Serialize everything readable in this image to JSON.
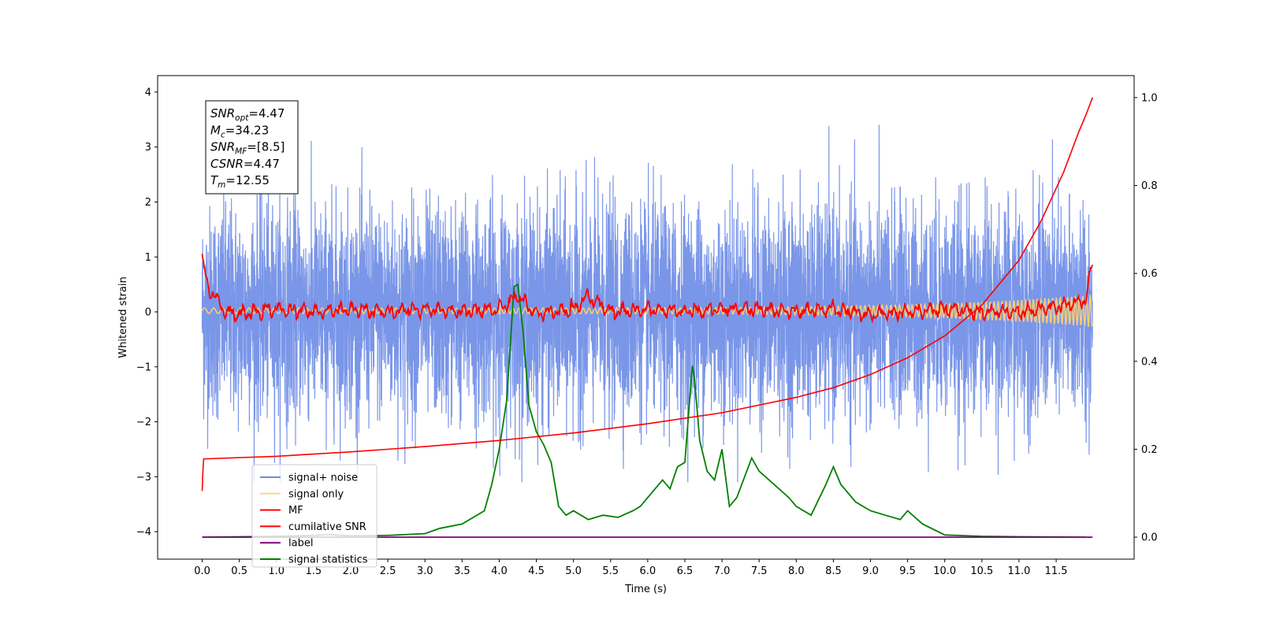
{
  "chart_data": {
    "type": "line",
    "xlabel": "Time (s)",
    "ylabel": "Whitened strain",
    "xlim": [
      -0.6,
      12.55
    ],
    "ylim_left": [
      -4.5,
      4.3
    ],
    "ylim_right": [
      -0.05,
      1.05
    ],
    "x_ticks": [
      "0.0",
      "0.5",
      "1.0",
      "1.5",
      "2.0",
      "2.5",
      "3.0",
      "3.5",
      "4.0",
      "4.5",
      "5.0",
      "5.5",
      "6.0",
      "6.5",
      "7.0",
      "7.5",
      "8.0",
      "8.5",
      "9.0",
      "9.5",
      "10.0",
      "10.5",
      "11.0",
      "11.5"
    ],
    "y_ticks_left": [
      "4",
      "3",
      "2",
      "1",
      "0",
      "−1",
      "−2",
      "−3",
      "−4"
    ],
    "y_ticks_right": [
      "1.0",
      "0.8",
      "0.6",
      "0.4",
      "0.2",
      "0.0"
    ],
    "legend_position": "lower left",
    "annotation": {
      "lines": [
        {
          "base": "SNR",
          "sub": "opt",
          "value": "=4.47"
        },
        {
          "base": "M",
          "sub": "c",
          "value": "=34.23"
        },
        {
          "base": "SNR",
          "sub": "MF",
          "value": "=[8.5]"
        },
        {
          "base": "CSNR",
          "sub": "",
          "value": "=4.47"
        },
        {
          "base": "T",
          "sub": "m",
          "value": "=12.55"
        }
      ]
    },
    "series": [
      {
        "name": "signal+ noise",
        "color": "#6b8be6",
        "axis": "left",
        "style": "noise band, mean 0, approx range [-3.1, 3.9]",
        "x_range": [
          0.0,
          11.99
        ]
      },
      {
        "name": "signal only",
        "color": "#f5cc7a",
        "axis": "left",
        "style": "near zero oscillation",
        "x_range": [
          0.0,
          11.99
        ]
      },
      {
        "name": "MF",
        "color": "#ff0000",
        "axis": "left",
        "x": [
          0.0,
          0.05,
          0.1,
          0.2,
          0.3,
          0.5,
          1.0,
          1.5,
          2.0,
          2.5,
          3.0,
          3.5,
          4.0,
          4.25,
          4.5,
          5.0,
          5.2,
          5.5,
          6.0,
          6.5,
          7.0,
          7.5,
          8.0,
          8.5,
          9.0,
          9.5,
          10.0,
          10.5,
          11.0,
          11.5,
          11.9,
          11.99
        ],
        "y": [
          1.0,
          0.6,
          0.4,
          0.25,
          0.0,
          -0.05,
          0.05,
          0.0,
          0.05,
          0.0,
          0.05,
          0.0,
          0.05,
          0.3,
          -0.05,
          0.05,
          0.3,
          0.0,
          0.05,
          0.0,
          0.05,
          0.05,
          0.0,
          0.05,
          -0.05,
          0.0,
          0.05,
          0.0,
          0.0,
          0.1,
          0.2,
          0.95
        ]
      },
      {
        "name": "cumilative SNR",
        "color": "#ff0000",
        "axis": "right",
        "x": [
          0.0,
          0.01,
          0.02,
          1.0,
          2.0,
          3.0,
          4.0,
          5.0,
          6.0,
          7.0,
          8.0,
          8.5,
          9.0,
          9.5,
          10.0,
          10.5,
          11.0,
          11.3,
          11.6,
          11.8,
          11.9,
          11.99
        ],
        "y": [
          0.105,
          0.15,
          0.178,
          0.184,
          0.194,
          0.206,
          0.22,
          0.237,
          0.258,
          0.283,
          0.318,
          0.34,
          0.37,
          0.408,
          0.458,
          0.528,
          0.63,
          0.72,
          0.83,
          0.92,
          0.96,
          1.0
        ]
      },
      {
        "name": "label",
        "color": "#800080",
        "axis": "right",
        "x": [
          0.0,
          11.99
        ],
        "y": [
          0.0,
          0.0
        ]
      },
      {
        "name": "signal statistics",
        "color": "#008000",
        "axis": "right",
        "x": [
          0.0,
          1.0,
          1.5,
          1.7,
          2.0,
          2.5,
          3.0,
          3.2,
          3.5,
          3.8,
          3.9,
          4.0,
          4.1,
          4.2,
          4.25,
          4.32,
          4.4,
          4.5,
          4.6,
          4.7,
          4.8,
          4.9,
          5.0,
          5.1,
          5.2,
          5.4,
          5.6,
          5.8,
          5.9,
          6.0,
          6.2,
          6.3,
          6.4,
          6.5,
          6.6,
          6.63,
          6.7,
          6.8,
          6.9,
          7.0,
          7.1,
          7.2,
          7.4,
          7.5,
          7.7,
          7.9,
          8.0,
          8.2,
          8.4,
          8.5,
          8.6,
          8.8,
          8.9,
          9.0,
          9.2,
          9.4,
          9.5,
          9.7,
          10.0,
          10.5,
          11.0,
          11.9
        ],
        "y": [
          0.0,
          0.002,
          0.004,
          0.006,
          0.003,
          0.004,
          0.008,
          0.02,
          0.03,
          0.06,
          0.12,
          0.2,
          0.31,
          0.57,
          0.575,
          0.47,
          0.3,
          0.24,
          0.21,
          0.17,
          0.07,
          0.05,
          0.06,
          0.05,
          0.04,
          0.05,
          0.045,
          0.06,
          0.07,
          0.09,
          0.13,
          0.11,
          0.16,
          0.17,
          0.39,
          0.36,
          0.22,
          0.15,
          0.13,
          0.2,
          0.07,
          0.09,
          0.18,
          0.15,
          0.12,
          0.09,
          0.07,
          0.05,
          0.12,
          0.16,
          0.12,
          0.08,
          0.07,
          0.06,
          0.05,
          0.04,
          0.06,
          0.03,
          0.005,
          0.002,
          0.001,
          0.0
        ]
      }
    ]
  }
}
